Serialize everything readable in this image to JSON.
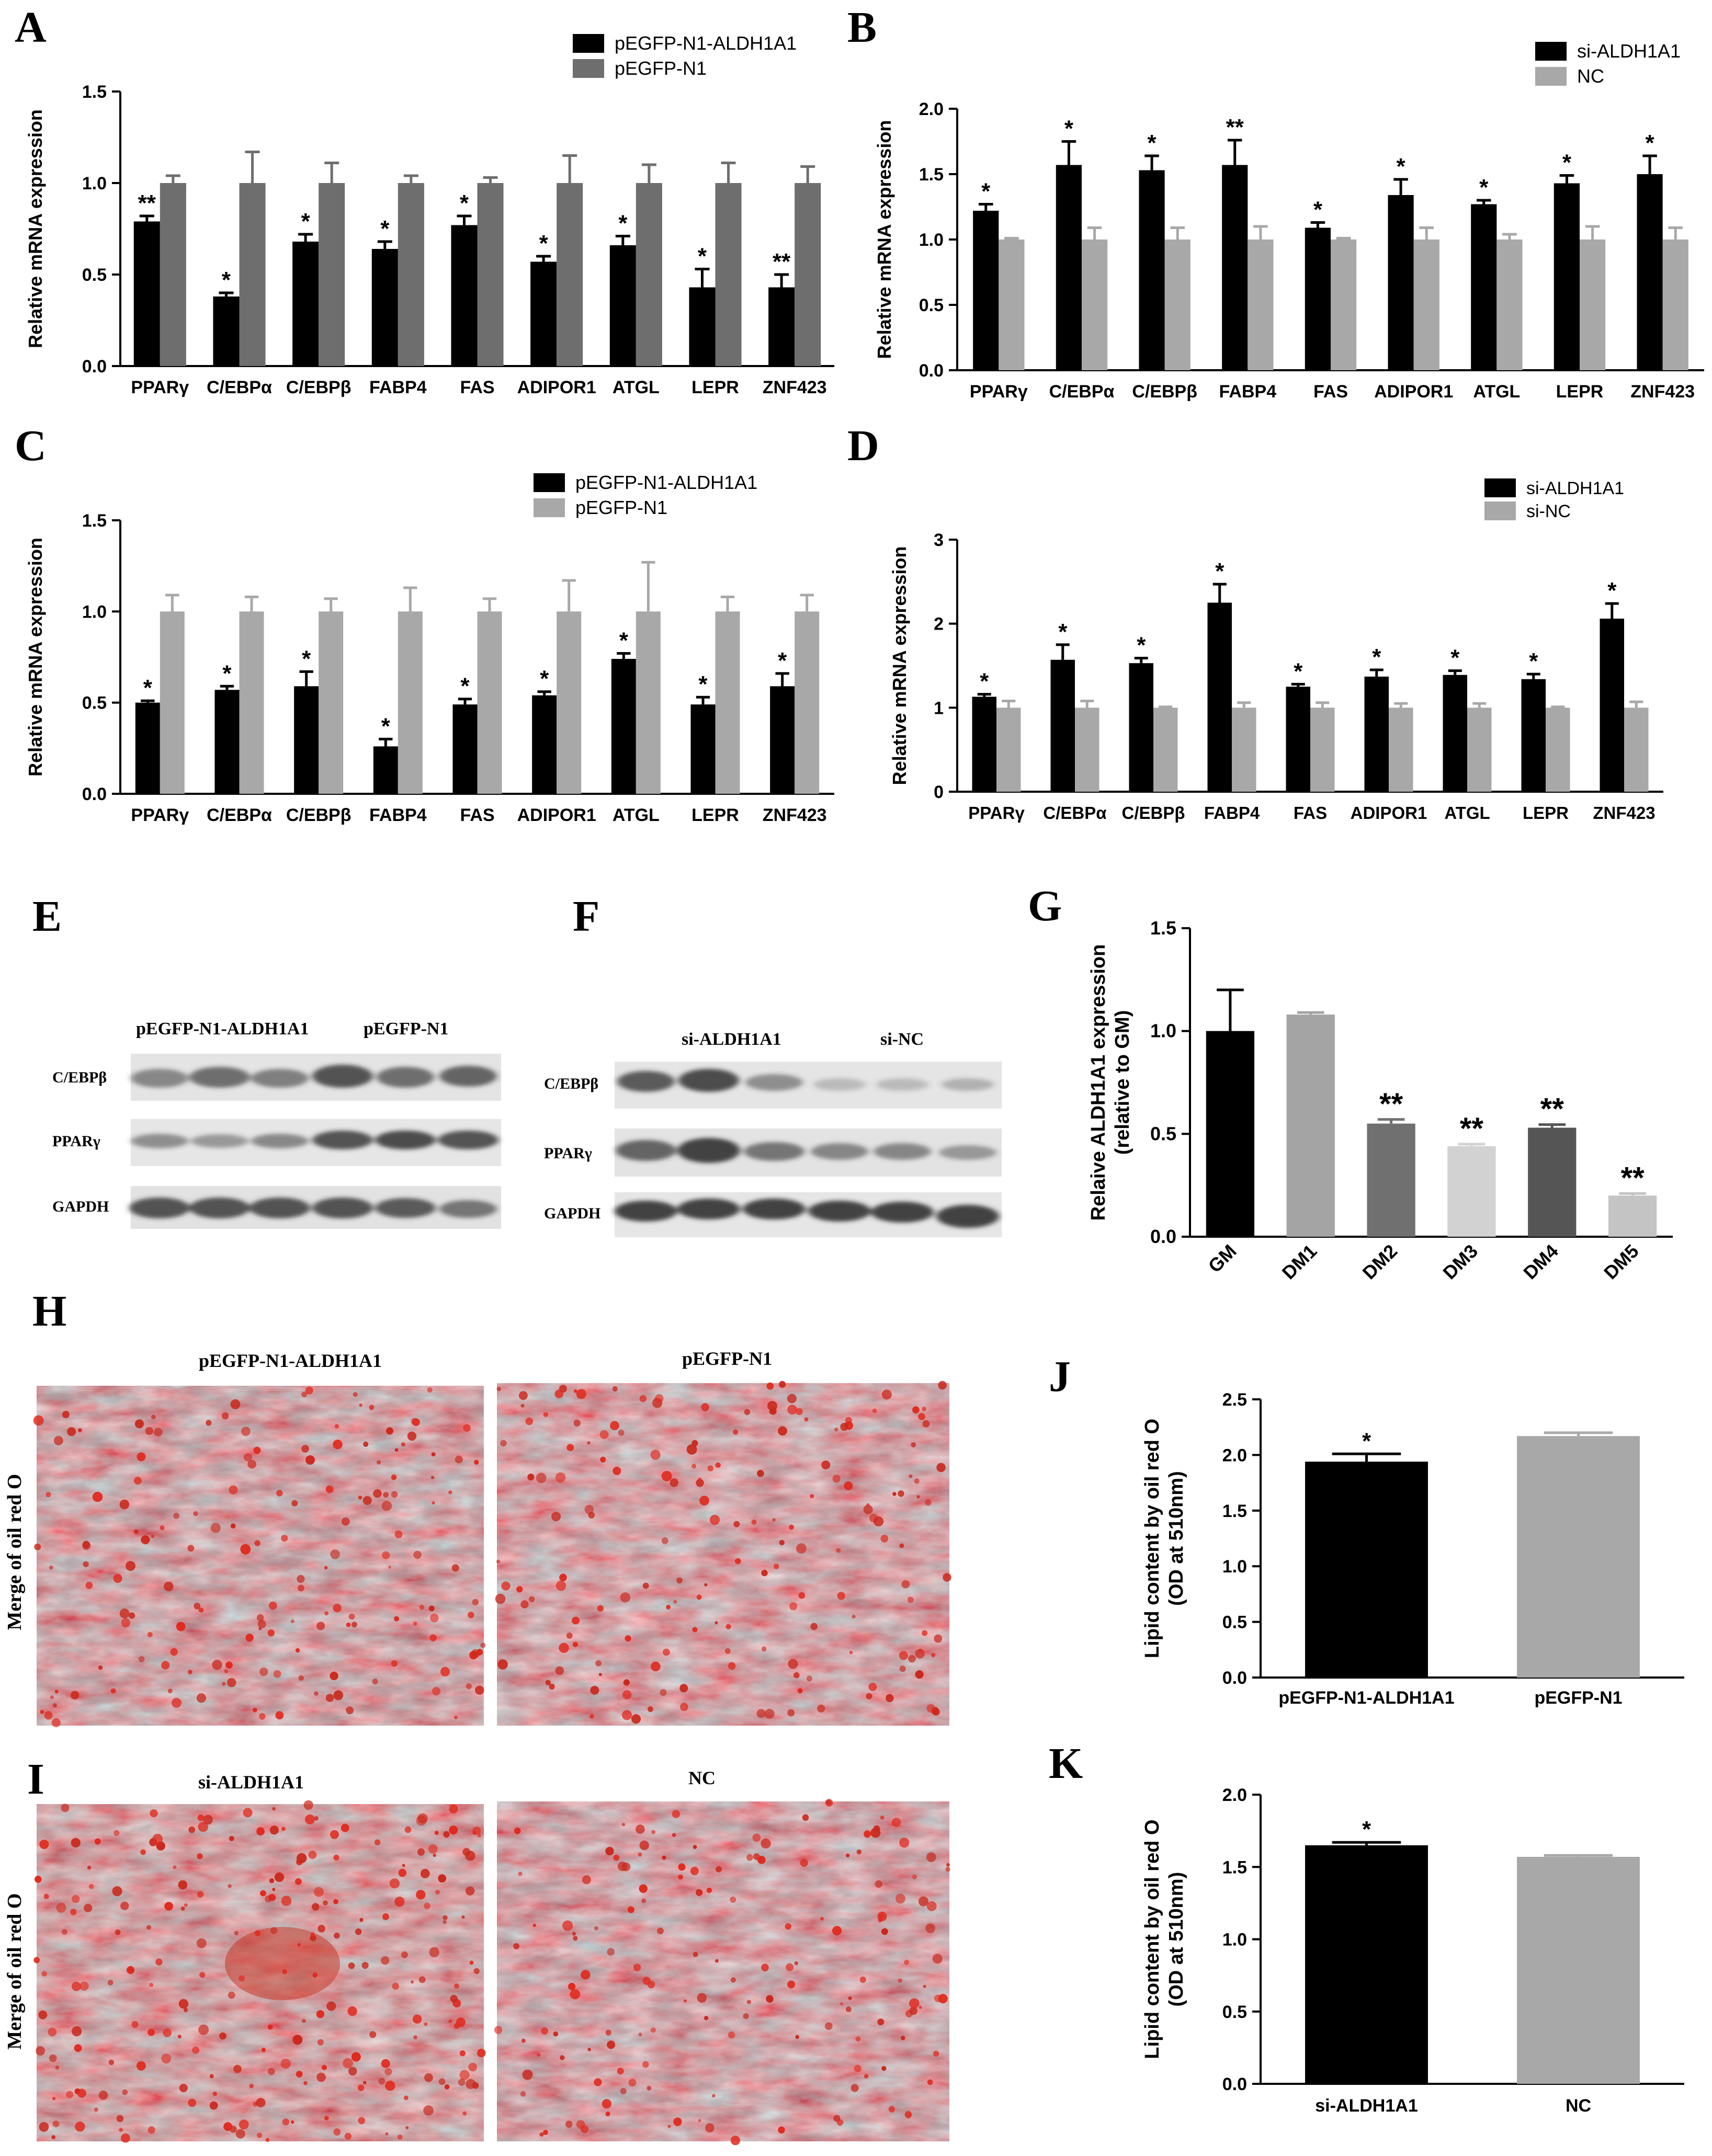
{
  "panel_letters": {
    "A": "A",
    "B": "B",
    "C": "C",
    "D": "D",
    "E": "E",
    "F": "F",
    "G": "G",
    "H": "H",
    "I": "I",
    "J": "J",
    "K": "K"
  },
  "colors": {
    "black": "#000000",
    "dark_gray": "#6e6e6e",
    "light_gray": "#a8a8a9",
    "g_dm1": "#a4a4a4",
    "g_dm2": "#707070",
    "g_dm3": "#d2d2d2",
    "g_dm4": "#555555",
    "g_dm5": "#c4c4c4"
  },
  "chart_data": [
    {
      "panel": "A",
      "type": "bar",
      "categories": [
        "PPARγ",
        "C/EBPα",
        "C/EBPβ",
        "FABP4",
        "FAS",
        "ADIPOR1",
        "ATGL",
        "LEPR",
        "ZNF423"
      ],
      "ylabel": "Relative mRNA expression",
      "ylim": [
        0,
        1.5
      ],
      "yticks": [
        "0.0",
        "0.5",
        "1.0",
        "1.5"
      ],
      "series": [
        {
          "name": "pEGFP-N1-ALDH1A1",
          "color": "#000000",
          "values": [
            0.79,
            0.38,
            0.68,
            0.64,
            0.77,
            0.57,
            0.66,
            0.43,
            0.43
          ],
          "errors": [
            0.03,
            0.02,
            0.04,
            0.04,
            0.05,
            0.03,
            0.05,
            0.1,
            0.07
          ],
          "marks": [
            "**",
            "*",
            "*",
            "*",
            "*",
            "*",
            "*",
            "*",
            "**"
          ]
        },
        {
          "name": "pEGFP-N1",
          "color": "#6e6e6e",
          "values": [
            1.0,
            1.0,
            1.0,
            1.0,
            1.0,
            1.0,
            1.0,
            1.0,
            1.0
          ],
          "errors": [
            0.04,
            0.17,
            0.11,
            0.04,
            0.03,
            0.15,
            0.1,
            0.11,
            0.09
          ]
        }
      ]
    },
    {
      "panel": "B",
      "type": "bar",
      "categories": [
        "PPARγ",
        "C/EBPα",
        "C/EBPβ",
        "FABP4",
        "FAS",
        "ADIPOR1",
        "ATGL",
        "LEPR",
        "ZNF423"
      ],
      "ylabel": "Relative mRNA expression",
      "ylim": [
        0,
        2.0
      ],
      "yticks": [
        "0.0",
        "0.5",
        "1.0",
        "1.5",
        "2.0"
      ],
      "series": [
        {
          "name": "si-ALDH1A1",
          "color": "#000000",
          "values": [
            1.22,
            1.57,
            1.53,
            1.57,
            1.09,
            1.34,
            1.27,
            1.43,
            1.5
          ],
          "errors": [
            0.05,
            0.18,
            0.11,
            0.19,
            0.04,
            0.12,
            0.03,
            0.06,
            0.14
          ],
          "marks": [
            "*",
            "*",
            "*",
            "**",
            "*",
            "*",
            "*",
            "*",
            "*"
          ]
        },
        {
          "name": "NC",
          "color": "#a8a8a9",
          "values": [
            1.0,
            1.0,
            1.0,
            1.0,
            1.0,
            1.0,
            1.0,
            1.0,
            1.0
          ],
          "errors": [
            0.01,
            0.09,
            0.09,
            0.1,
            0.01,
            0.09,
            0.04,
            0.1,
            0.09
          ]
        }
      ]
    },
    {
      "panel": "C",
      "type": "bar",
      "categories": [
        "PPARγ",
        "C/EBPα",
        "C/EBPβ",
        "FABP4",
        "FAS",
        "ADIPOR1",
        "ATGL",
        "LEPR",
        "ZNF423"
      ],
      "ylabel": "Relative mRNA expression",
      "ylim": [
        0,
        1.5
      ],
      "yticks": [
        "0.0",
        "0.5",
        "1.0",
        "1.5"
      ],
      "series": [
        {
          "name": "pEGFP-N1-ALDH1A1",
          "color": "#000000",
          "values": [
            0.5,
            0.57,
            0.59,
            0.26,
            0.49,
            0.54,
            0.74,
            0.49,
            0.59
          ],
          "errors": [
            0.01,
            0.02,
            0.08,
            0.04,
            0.03,
            0.02,
            0.03,
            0.04,
            0.07
          ],
          "marks": [
            "*",
            "*",
            "*",
            "*",
            "*",
            "*",
            "*",
            "*",
            "*"
          ]
        },
        {
          "name": "pEGFP-N1",
          "color": "#a8a8a9",
          "values": [
            1.0,
            1.0,
            1.0,
            1.0,
            1.0,
            1.0,
            1.0,
            1.0,
            1.0
          ],
          "errors": [
            0.09,
            0.08,
            0.07,
            0.13,
            0.07,
            0.17,
            0.27,
            0.08,
            0.09
          ]
        }
      ]
    },
    {
      "panel": "D",
      "type": "bar",
      "categories": [
        "PPARγ",
        "C/EBPα",
        "C/EBPβ",
        "FABP4",
        "FAS",
        "ADIPOR1",
        "ATGL",
        "LEPR",
        "ZNF423"
      ],
      "ylabel": "Relative mRNA expression",
      "ylim": [
        0,
        3
      ],
      "yticks": [
        "0",
        "1",
        "2",
        "3"
      ],
      "series": [
        {
          "name": "si-ALDH1A1",
          "color": "#000000",
          "values": [
            1.13,
            1.57,
            1.53,
            2.25,
            1.25,
            1.37,
            1.39,
            1.34,
            2.06
          ],
          "errors": [
            0.03,
            0.18,
            0.06,
            0.22,
            0.03,
            0.08,
            0.05,
            0.06,
            0.18
          ],
          "marks": [
            "*",
            "*",
            "*",
            "*",
            "*",
            "*",
            "*",
            "*",
            "*"
          ]
        },
        {
          "name": "si-NC",
          "color": "#a8a8a9",
          "values": [
            1.0,
            1.0,
            1.0,
            1.0,
            1.0,
            1.0,
            1.0,
            1.0,
            1.0
          ],
          "errors": [
            0.08,
            0.08,
            0.01,
            0.06,
            0.06,
            0.05,
            0.05,
            0.01,
            0.07
          ]
        }
      ]
    },
    {
      "panel": "G",
      "type": "bar",
      "categories": [
        "GM",
        "DM1",
        "DM2",
        "DM3",
        "DM4",
        "DM5"
      ],
      "ylabel": "Relaive ALDH1A1 expression (relative to GM)",
      "ylabel_lines": [
        "Relaive ALDH1A1 expression",
        "(relative to GM)"
      ],
      "ylim": [
        0,
        1.5
      ],
      "yticks": [
        "0.0",
        "0.5",
        "1.0",
        "1.5"
      ],
      "series": [
        {
          "name": "",
          "values": [
            1.0,
            1.08,
            0.55,
            0.44,
            0.53,
            0.2
          ],
          "errors": [
            0.2,
            0.01,
            0.02,
            0.01,
            0.015,
            0.01
          ],
          "colors": [
            "#000000",
            "#a4a4a4",
            "#707070",
            "#d2d2d2",
            "#555555",
            "#c4c4c4"
          ],
          "marks": [
            "",
            "",
            "**",
            "**",
            "**",
            "**"
          ]
        }
      ]
    },
    {
      "panel": "J",
      "type": "bar",
      "categories": [
        "pEGFP-N1-ALDH1A1",
        "pEGFP-N1"
      ],
      "ylabel": "Lipid content by oil red O (OD at 510nm)",
      "ylabel_lines": [
        "Lipid content by oil red O",
        "(OD at 510nm)"
      ],
      "ylim": [
        0,
        2.5
      ],
      "yticks": [
        "0.0",
        "0.5",
        "1.0",
        "1.5",
        "2.0",
        "2.5"
      ],
      "series": [
        {
          "name": "",
          "values": [
            1.94,
            2.17
          ],
          "errors": [
            0.07,
            0.03
          ],
          "colors": [
            "#000000",
            "#a8a8a9"
          ],
          "marks": [
            "*",
            ""
          ]
        }
      ]
    },
    {
      "panel": "K",
      "type": "bar",
      "categories": [
        "si-ALDH1A1",
        "NC"
      ],
      "ylabel": "Lipid content by oil red O (OD at 510nm)",
      "ylabel_lines": [
        "Lipid content by oil red O",
        "(OD at 510nm)"
      ],
      "ylim": [
        0,
        2.0
      ],
      "yticks": [
        "0.0",
        "0.5",
        "1.0",
        "1.5",
        "2.0"
      ],
      "series": [
        {
          "name": "",
          "values": [
            1.65,
            1.57
          ],
          "errors": [
            0.02,
            0.01
          ],
          "colors": [
            "#000000",
            "#a8a8a9"
          ],
          "marks": [
            "*",
            ""
          ]
        }
      ]
    }
  ],
  "western_blots": {
    "E": {
      "groups": [
        "pEGFP-N1-ALDH1A1",
        "pEGFP-N1"
      ],
      "rows": [
        "C/EBPβ",
        "PPARγ",
        "GAPDH"
      ]
    },
    "F": {
      "groups": [
        "si-ALDH1A1",
        "si-NC"
      ],
      "rows": [
        "C/EBPβ",
        "PPARγ",
        "GAPDH"
      ]
    }
  },
  "micrographs": {
    "H": {
      "side_label": "Merge of oil red O",
      "labels": [
        "pEGFP-N1-ALDH1A1",
        "pEGFP-N1"
      ]
    },
    "I": {
      "side_label": "Merge of oil red O",
      "labels": [
        "si-ALDH1A1",
        "NC"
      ]
    }
  }
}
